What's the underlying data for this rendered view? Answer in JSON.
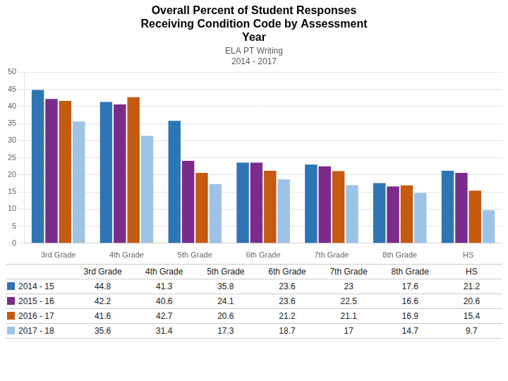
{
  "chart_data": {
    "type": "bar",
    "title": "Overall Percent of Student Responses\nReceiving Condition Code by Assessment\nYear",
    "subtitle": "ELA PT Writing\n2014 - 2017",
    "categories": [
      "3rd Grade",
      "4th Grade",
      "5th Grade",
      "6th Grade",
      "7th Grade",
      "8th Grade",
      "HS"
    ],
    "series": [
      {
        "name": "2014 - 15",
        "color": "#2E75B6",
        "values": [
          44.8,
          41.3,
          35.8,
          23.6,
          23.0,
          17.6,
          21.2
        ]
      },
      {
        "name": "2015 - 16",
        "color": "#7B2C8B",
        "values": [
          42.2,
          40.6,
          24.1,
          23.6,
          22.5,
          16.6,
          20.6
        ]
      },
      {
        "name": "2016 - 17",
        "color": "#C55A11",
        "values": [
          41.6,
          42.7,
          20.6,
          21.2,
          21.1,
          16.9,
          15.4
        ]
      },
      {
        "name": "2017 - 18",
        "color": "#9DC3E6",
        "values": [
          35.6,
          31.4,
          17.3,
          18.7,
          17.0,
          14.7,
          9.7
        ]
      }
    ],
    "ylim": [
      0,
      50
    ],
    "yticks": [
      0,
      5,
      10,
      15,
      20,
      25,
      30,
      35,
      40,
      45,
      50
    ],
    "grid": true,
    "legend": "bottom"
  }
}
